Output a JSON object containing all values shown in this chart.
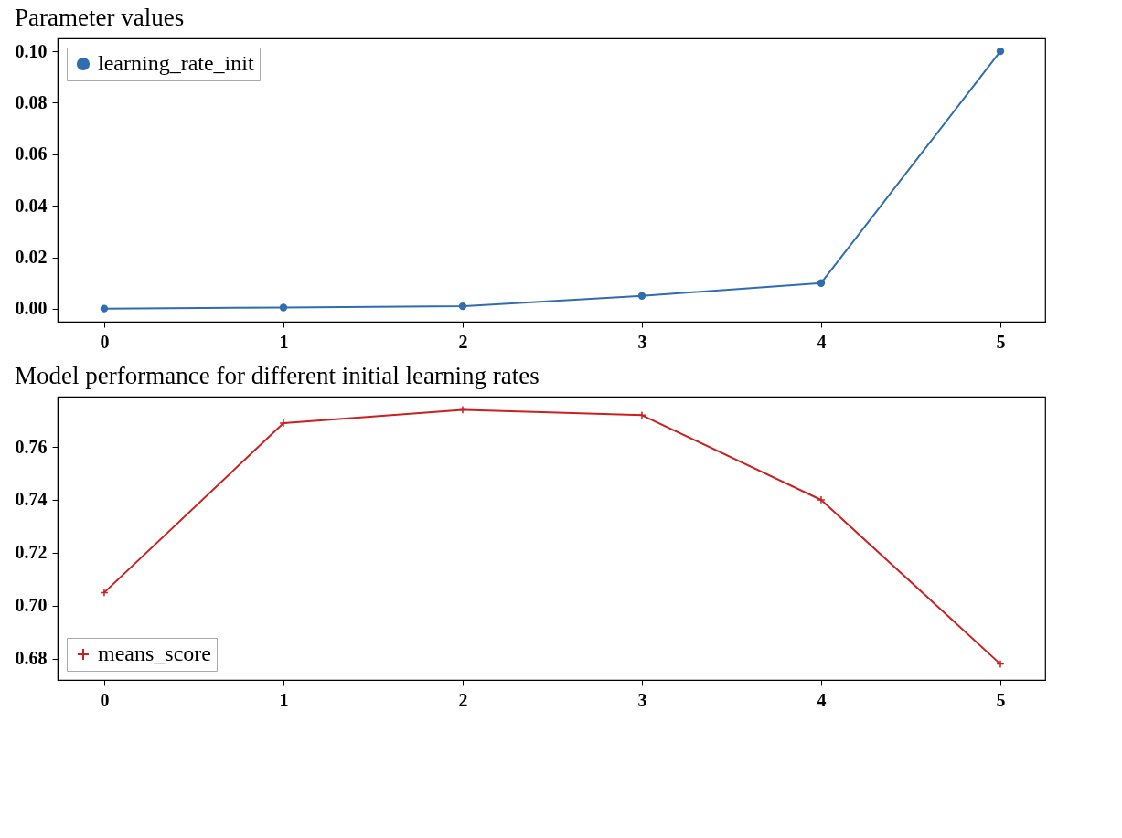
{
  "chart_data": [
    {
      "type": "line",
      "title": "Parameter values",
      "x": [
        0,
        1,
        2,
        3,
        4,
        5
      ],
      "xlim": [
        -0.26,
        5.25
      ],
      "xticks": [
        0,
        1,
        2,
        3,
        4,
        5
      ],
      "ylim": [
        -0.005,
        0.105
      ],
      "yticks": [
        {
          "value": 0,
          "label": "0.00"
        },
        {
          "value": 0.02,
          "label": "0.02"
        },
        {
          "value": 0.04,
          "label": "0.04"
        },
        {
          "value": 0.06,
          "label": "0.06"
        },
        {
          "value": 0.08,
          "label": "0.08"
        },
        {
          "value": 0.1,
          "label": "0.10"
        }
      ],
      "series": [
        {
          "name": "learning_rate_init",
          "color": "#2f6db0",
          "marker": "circle",
          "values": [
            0.0001,
            0.0005,
            0.001,
            0.005,
            0.01,
            0.1
          ]
        }
      ],
      "legend": "top left",
      "grid": false,
      "line_style": "solid"
    },
    {
      "type": "line",
      "title": "Model performance for different initial learning rates",
      "x": [
        0,
        1,
        2,
        3,
        4,
        5
      ],
      "xlim": [
        -0.26,
        5.25
      ],
      "xticks": [
        0,
        1,
        2,
        3,
        4,
        5
      ],
      "ylim": [
        0.672,
        0.779
      ],
      "yticks": [
        {
          "value": 0.68,
          "label": "0.68"
        },
        {
          "value": 0.7,
          "label": "0.70"
        },
        {
          "value": 0.72,
          "label": "0.72"
        },
        {
          "value": 0.74,
          "label": "0.74"
        },
        {
          "value": 0.76,
          "label": "0.76"
        }
      ],
      "series": [
        {
          "name": "means_score",
          "color": "#cc1f1f",
          "marker": "cross",
          "values": [
            0.705,
            0.769,
            0.774,
            0.772,
            0.74,
            0.678
          ]
        }
      ],
      "legend": "bottom left",
      "grid": false,
      "line_style": "solid"
    }
  ]
}
